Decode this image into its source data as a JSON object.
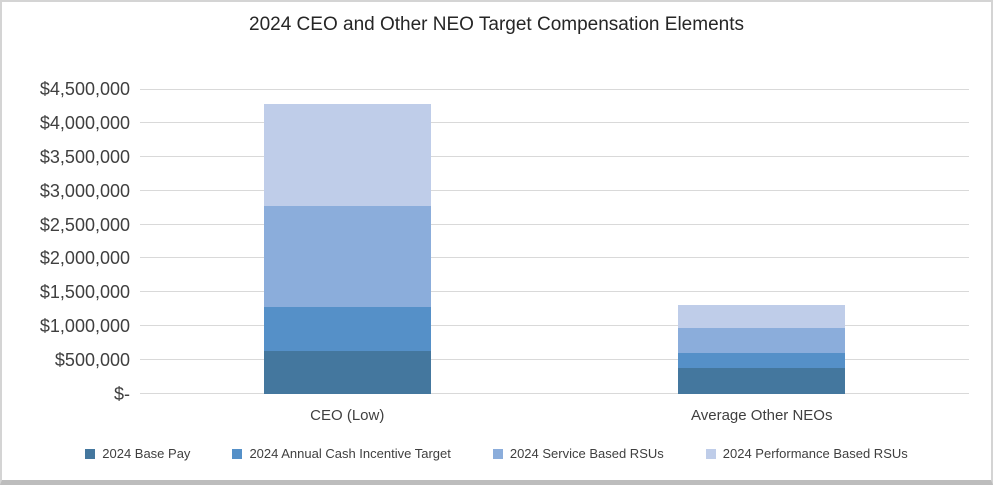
{
  "frame": {
    "border_color": "#d4d4d4",
    "bottom_bar_color": "#bdbdbd",
    "background": "#ffffff"
  },
  "chart_data": {
    "type": "bar",
    "stacked": true,
    "title": "2024 CEO and Other NEO Target Compensation Elements",
    "categories": [
      "CEO (Low)",
      "Average Other NEOs"
    ],
    "series": [
      {
        "name": "2024 Base Pay",
        "color": "#44779E",
        "values": [
          640000,
          390000
        ]
      },
      {
        "name": "2024 Annual Cash Incentive Target",
        "color": "#5590C8",
        "values": [
          640000,
          220000
        ]
      },
      {
        "name": "2024 Service Based RSUs",
        "color": "#8BADDB",
        "values": [
          1500000,
          360000
        ]
      },
      {
        "name": "2024 Performance Based RSUs",
        "color": "#BFCDE9",
        "values": [
          1500000,
          350000
        ]
      }
    ],
    "totals": [
      4280000,
      1320000
    ],
    "ylim": [
      0,
      4500000
    ],
    "ytick_step": 500000,
    "ytick_labels": [
      "$-",
      "$500,000",
      "$1,000,000",
      "$1,500,000",
      "$2,000,000",
      "$2,500,000",
      "$3,000,000",
      "$3,500,000",
      "$4,000,000",
      "$4,500,000"
    ],
    "grid": true,
    "gridline_color": "#d9d9d9",
    "legend_position": "bottom",
    "text_color": "#3f3f3f"
  }
}
